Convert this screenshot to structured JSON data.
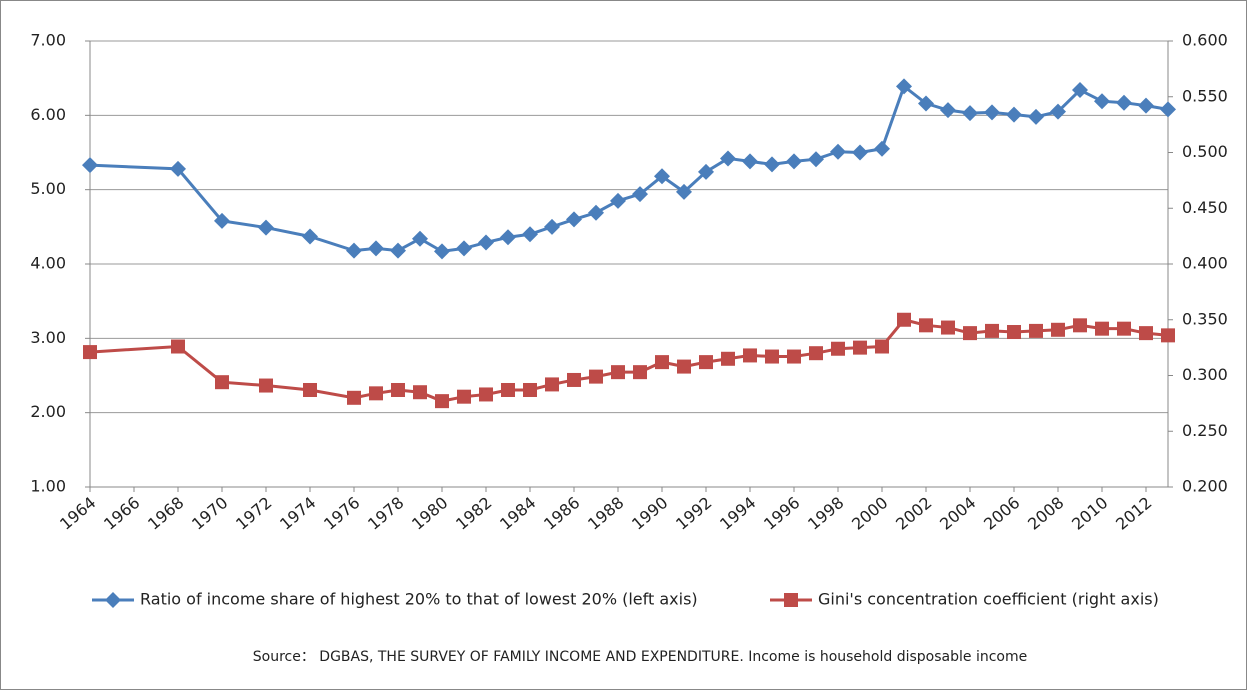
{
  "chart_data": {
    "type": "line",
    "source": "Source： DGBAS, THE SURVEY OF FAMILY INCOME AND EXPENDITURE. Income is household disposable income",
    "x": [
      1964,
      1968,
      1970,
      1972,
      1974,
      1976,
      1977,
      1978,
      1979,
      1980,
      1981,
      1982,
      1983,
      1984,
      1985,
      1986,
      1987,
      1988,
      1989,
      1990,
      1991,
      1992,
      1993,
      1994,
      1995,
      1996,
      1997,
      1998,
      1999,
      2000,
      2001,
      2002,
      2003,
      2004,
      2005,
      2006,
      2007,
      2008,
      2009,
      2010,
      2011,
      2012,
      2013
    ],
    "series": [
      {
        "name": "Ratio of income share of highest 20% to that of lowest 20% (left axis)",
        "color": "#4a7ebb",
        "marker": "diamond",
        "values": [
          5.33,
          5.28,
          4.58,
          4.49,
          4.37,
          4.18,
          4.21,
          4.18,
          4.34,
          4.17,
          4.21,
          4.29,
          4.36,
          4.4,
          4.5,
          4.6,
          4.69,
          4.85,
          4.94,
          5.18,
          4.97,
          5.24,
          5.42,
          5.38,
          5.34,
          5.38,
          5.41,
          5.51,
          5.5,
          5.55,
          6.39,
          6.16,
          6.07,
          6.03,
          6.04,
          6.01,
          5.98,
          6.05,
          6.34,
          6.19,
          6.17,
          6.13,
          6.08
        ]
      },
      {
        "name": "Gini's concentration coefficient (right axis)",
        "color": "#be4b48",
        "marker": "square",
        "axis": "y2",
        "values": [
          0.321,
          0.326,
          0.294,
          0.291,
          0.287,
          0.28,
          0.284,
          0.287,
          0.285,
          0.277,
          0.281,
          0.283,
          0.287,
          0.287,
          0.292,
          0.296,
          0.299,
          0.303,
          0.303,
          0.312,
          0.308,
          0.312,
          0.315,
          0.318,
          0.317,
          0.317,
          0.32,
          0.324,
          0.325,
          0.326,
          0.35,
          0.345,
          0.343,
          0.338,
          0.34,
          0.339,
          0.34,
          0.341,
          0.345,
          0.342,
          0.342,
          0.338,
          0.336
        ]
      }
    ],
    "xlim": [
      1964,
      2013
    ],
    "xticks": [
      1964,
      1966,
      1968,
      1970,
      1972,
      1974,
      1976,
      1978,
      1980,
      1982,
      1984,
      1986,
      1988,
      1990,
      1992,
      1994,
      1996,
      1998,
      2000,
      2002,
      2004,
      2006,
      2008,
      2010,
      2012
    ],
    "ylim": [
      1,
      7
    ],
    "yticks": [
      {
        "value": 1,
        "label": "1.00"
      },
      {
        "value": 2,
        "label": "2.00"
      },
      {
        "value": 3,
        "label": "3.00"
      },
      {
        "value": 4,
        "label": "4.00"
      },
      {
        "value": 5,
        "label": "5.00"
      },
      {
        "value": 6,
        "label": "6.00"
      },
      {
        "value": 7,
        "label": "7.00"
      }
    ],
    "y2lim": [
      0.2,
      0.6
    ],
    "y2ticks": [
      {
        "value": 0.2,
        "label": "0.200"
      },
      {
        "value": 0.25,
        "label": "0.250"
      },
      {
        "value": 0.3,
        "label": "0.300"
      },
      {
        "value": 0.35,
        "label": "0.350"
      },
      {
        "value": 0.4,
        "label": "0.400"
      },
      {
        "value": 0.45,
        "label": "0.450"
      },
      {
        "value": 0.5,
        "label": "0.500"
      },
      {
        "value": 0.55,
        "label": "0.550"
      },
      {
        "value": 0.6,
        "label": "0.600"
      }
    ],
    "grid": true
  }
}
